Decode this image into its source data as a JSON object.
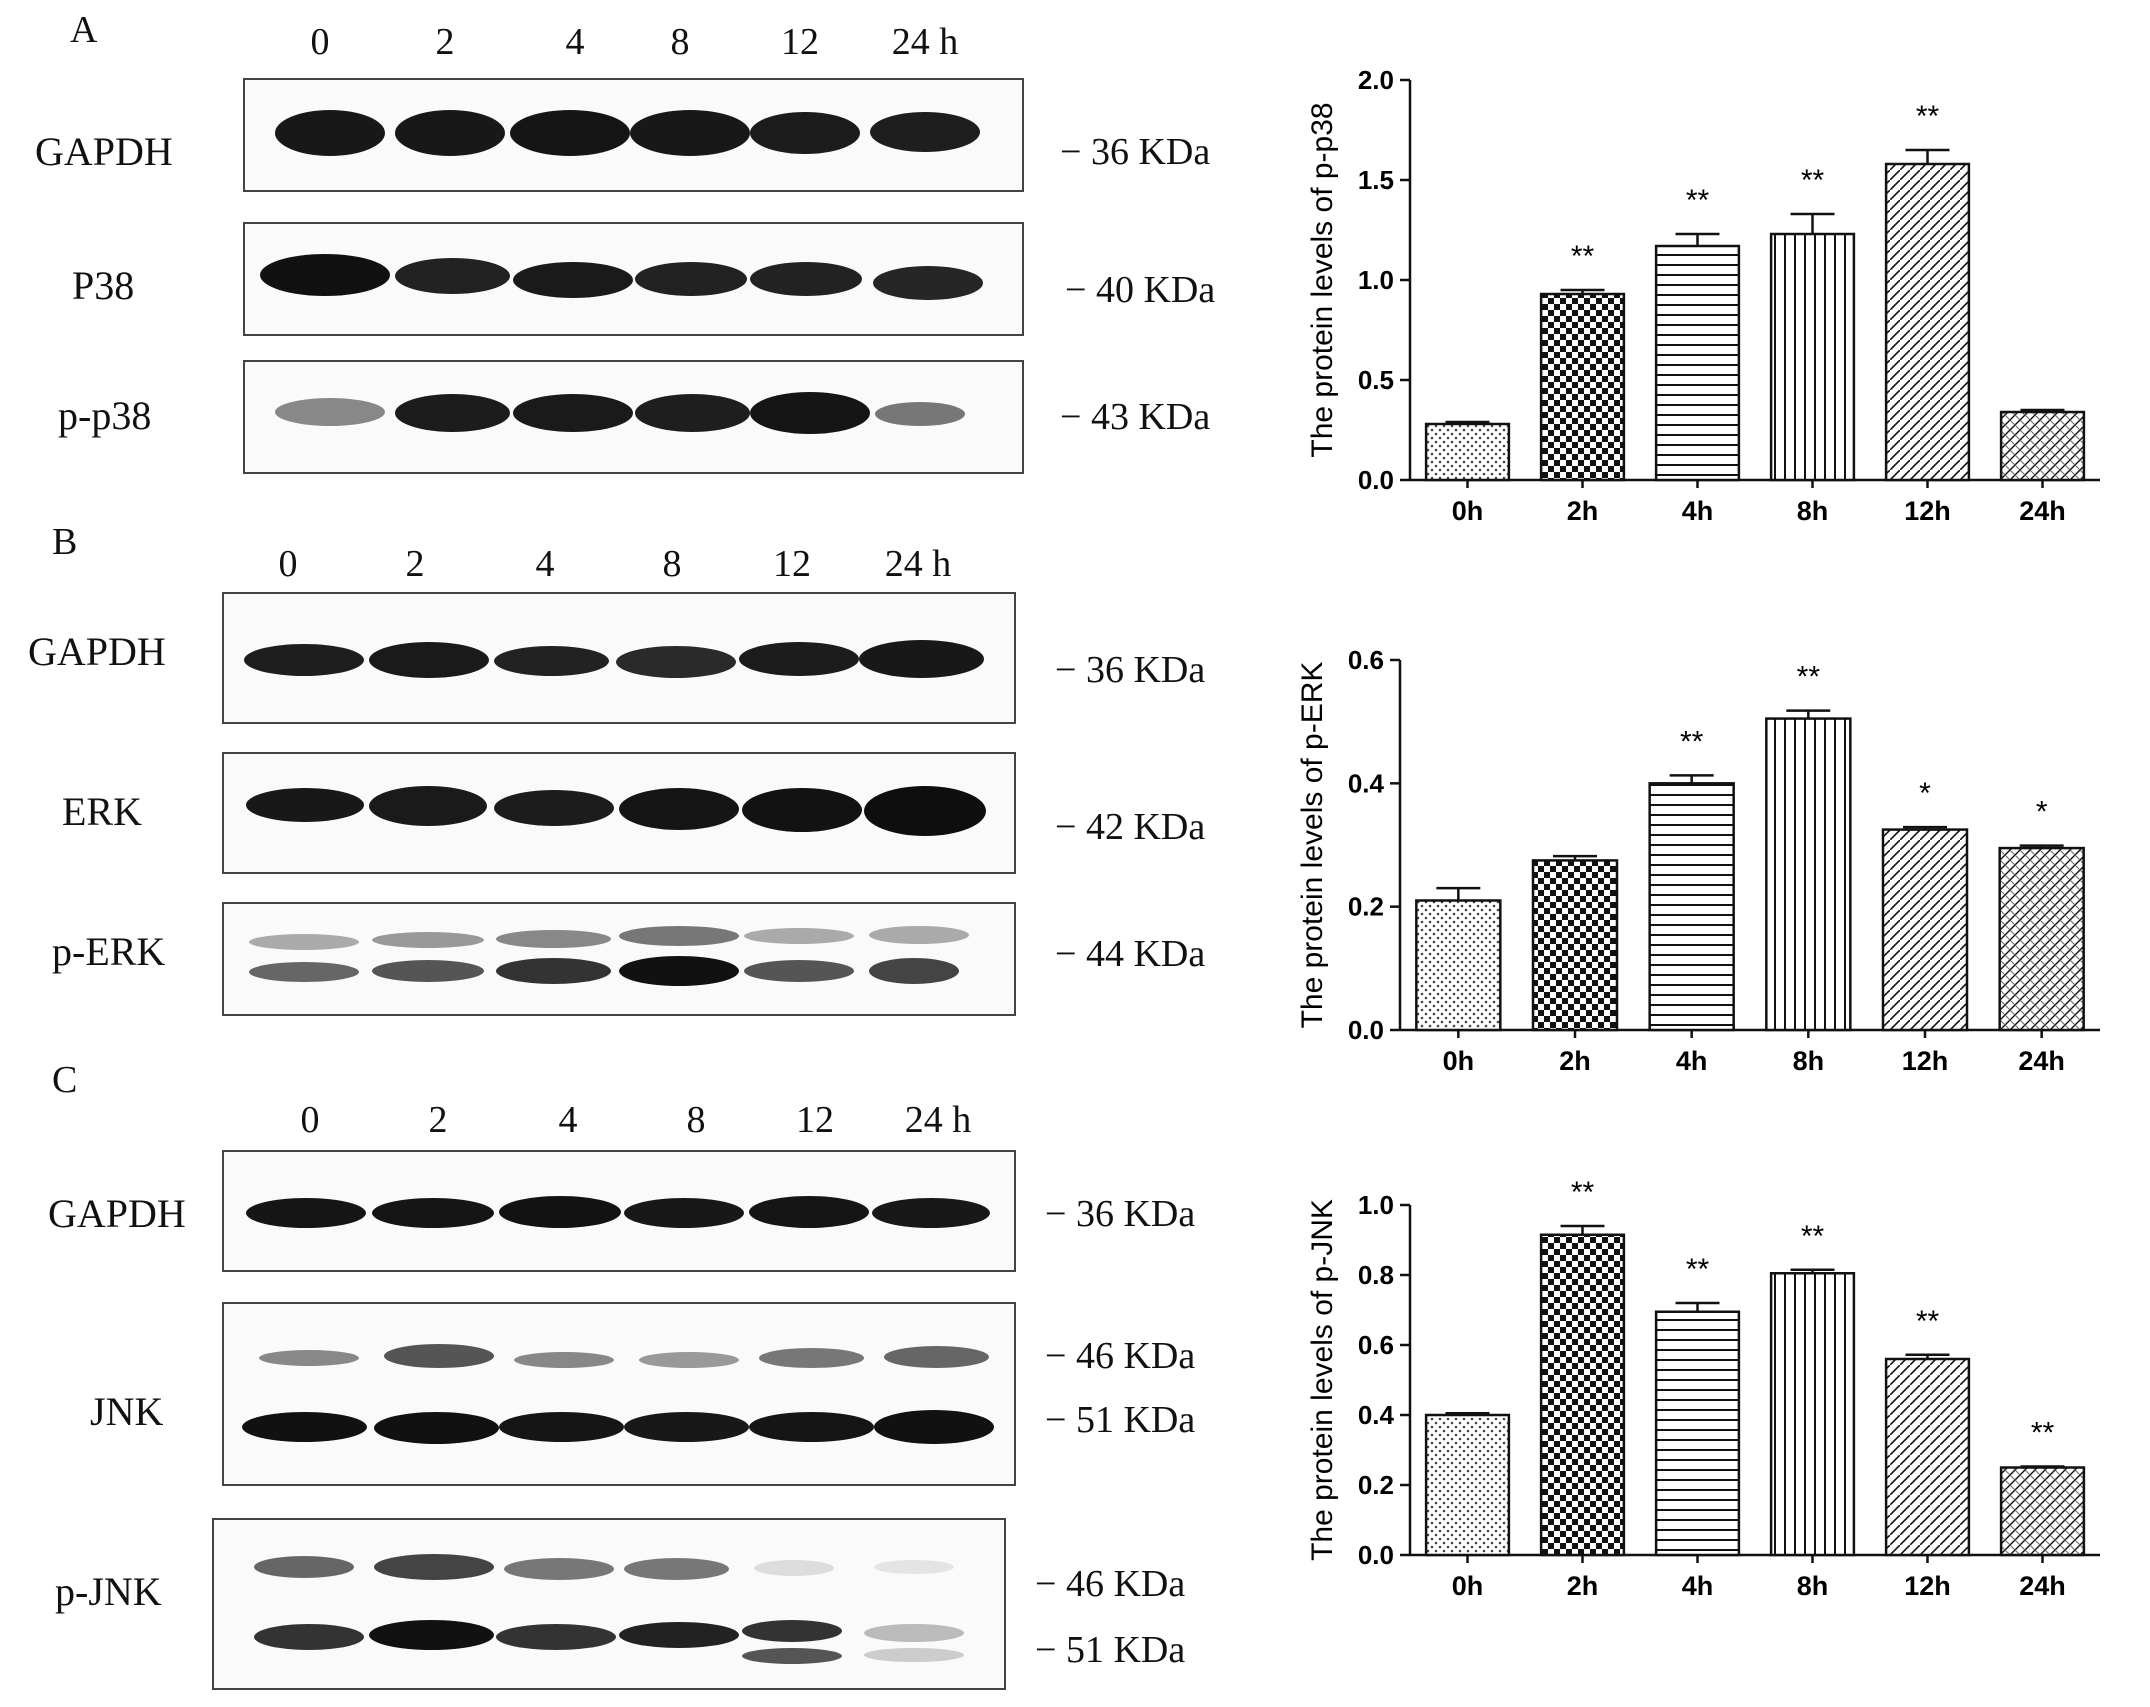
{
  "panels": {
    "A": {
      "letter": "A",
      "lanes": [
        "0",
        "2",
        "4",
        "8",
        "12",
        "24 h"
      ],
      "rows": [
        {
          "label": "GAPDH",
          "kda": "36 KDa"
        },
        {
          "label": "P38",
          "kda": "40 KDa"
        },
        {
          "label": "p-p38",
          "kda": "43 KDa"
        }
      ]
    },
    "B": {
      "letter": "B",
      "lanes": [
        "0",
        "2",
        "4",
        "8",
        "12",
        "24 h"
      ],
      "rows": [
        {
          "label": "GAPDH",
          "kda": "36 KDa"
        },
        {
          "label": "ERK",
          "kda": "42 KDa"
        },
        {
          "label": "p-ERK",
          "kda": "44 KDa"
        }
      ]
    },
    "C": {
      "letter": "C",
      "lanes": [
        "0",
        "2",
        "4",
        "8",
        "12",
        "24 h"
      ],
      "rows": [
        {
          "label": "GAPDH",
          "kda": "36 KDa"
        },
        {
          "label": "JNK",
          "kda_upper": "46 KDa",
          "kda_lower": "51 KDa"
        },
        {
          "label": "p-JNK",
          "kda_upper": "46 KDa",
          "kda_lower": "51 KDa"
        }
      ]
    }
  },
  "chart_data": [
    {
      "type": "bar",
      "ylabel": "The protein levels of  p-p38",
      "categories": [
        "0h",
        "2h",
        "4h",
        "8h",
        "12h",
        "24h"
      ],
      "values": [
        0.28,
        0.93,
        1.17,
        1.23,
        1.58,
        0.34
      ],
      "errors": [
        0.01,
        0.02,
        0.06,
        0.1,
        0.07,
        0.01
      ],
      "annotations": [
        "",
        "**",
        "**",
        "**",
        "**",
        ""
      ],
      "ylim": [
        0,
        2.0
      ],
      "yticks": [
        "0.0",
        "0.5",
        "1.0",
        "1.5",
        "2.0"
      ]
    },
    {
      "type": "bar",
      "ylabel": "The protein levels of p-ERK",
      "categories": [
        "0h",
        "2h",
        "4h",
        "8h",
        "12h",
        "24h"
      ],
      "values": [
        0.21,
        0.275,
        0.4,
        0.505,
        0.325,
        0.295
      ],
      "errors": [
        0.02,
        0.007,
        0.013,
        0.013,
        0.004,
        0.004
      ],
      "annotations": [
        "",
        "",
        "**",
        "**",
        "*",
        "*"
      ],
      "ylim": [
        0,
        0.6
      ],
      "yticks": [
        "0.0",
        "0.2",
        "0.4",
        "0.6"
      ]
    },
    {
      "type": "bar",
      "ylabel": "The protein levels of  p-JNK",
      "categories": [
        "0h",
        "2h",
        "4h",
        "8h",
        "12h",
        "24h"
      ],
      "values": [
        0.4,
        0.915,
        0.695,
        0.805,
        0.56,
        0.25
      ],
      "errors": [
        0.005,
        0.025,
        0.025,
        0.01,
        0.012,
        0.003
      ],
      "annotations": [
        "",
        "**",
        "**",
        "**",
        "**",
        "**"
      ],
      "ylim": [
        0,
        1.0
      ],
      "yticks": [
        "0.0",
        "0.2",
        "0.4",
        "0.6",
        "0.8",
        "1.0"
      ]
    }
  ]
}
